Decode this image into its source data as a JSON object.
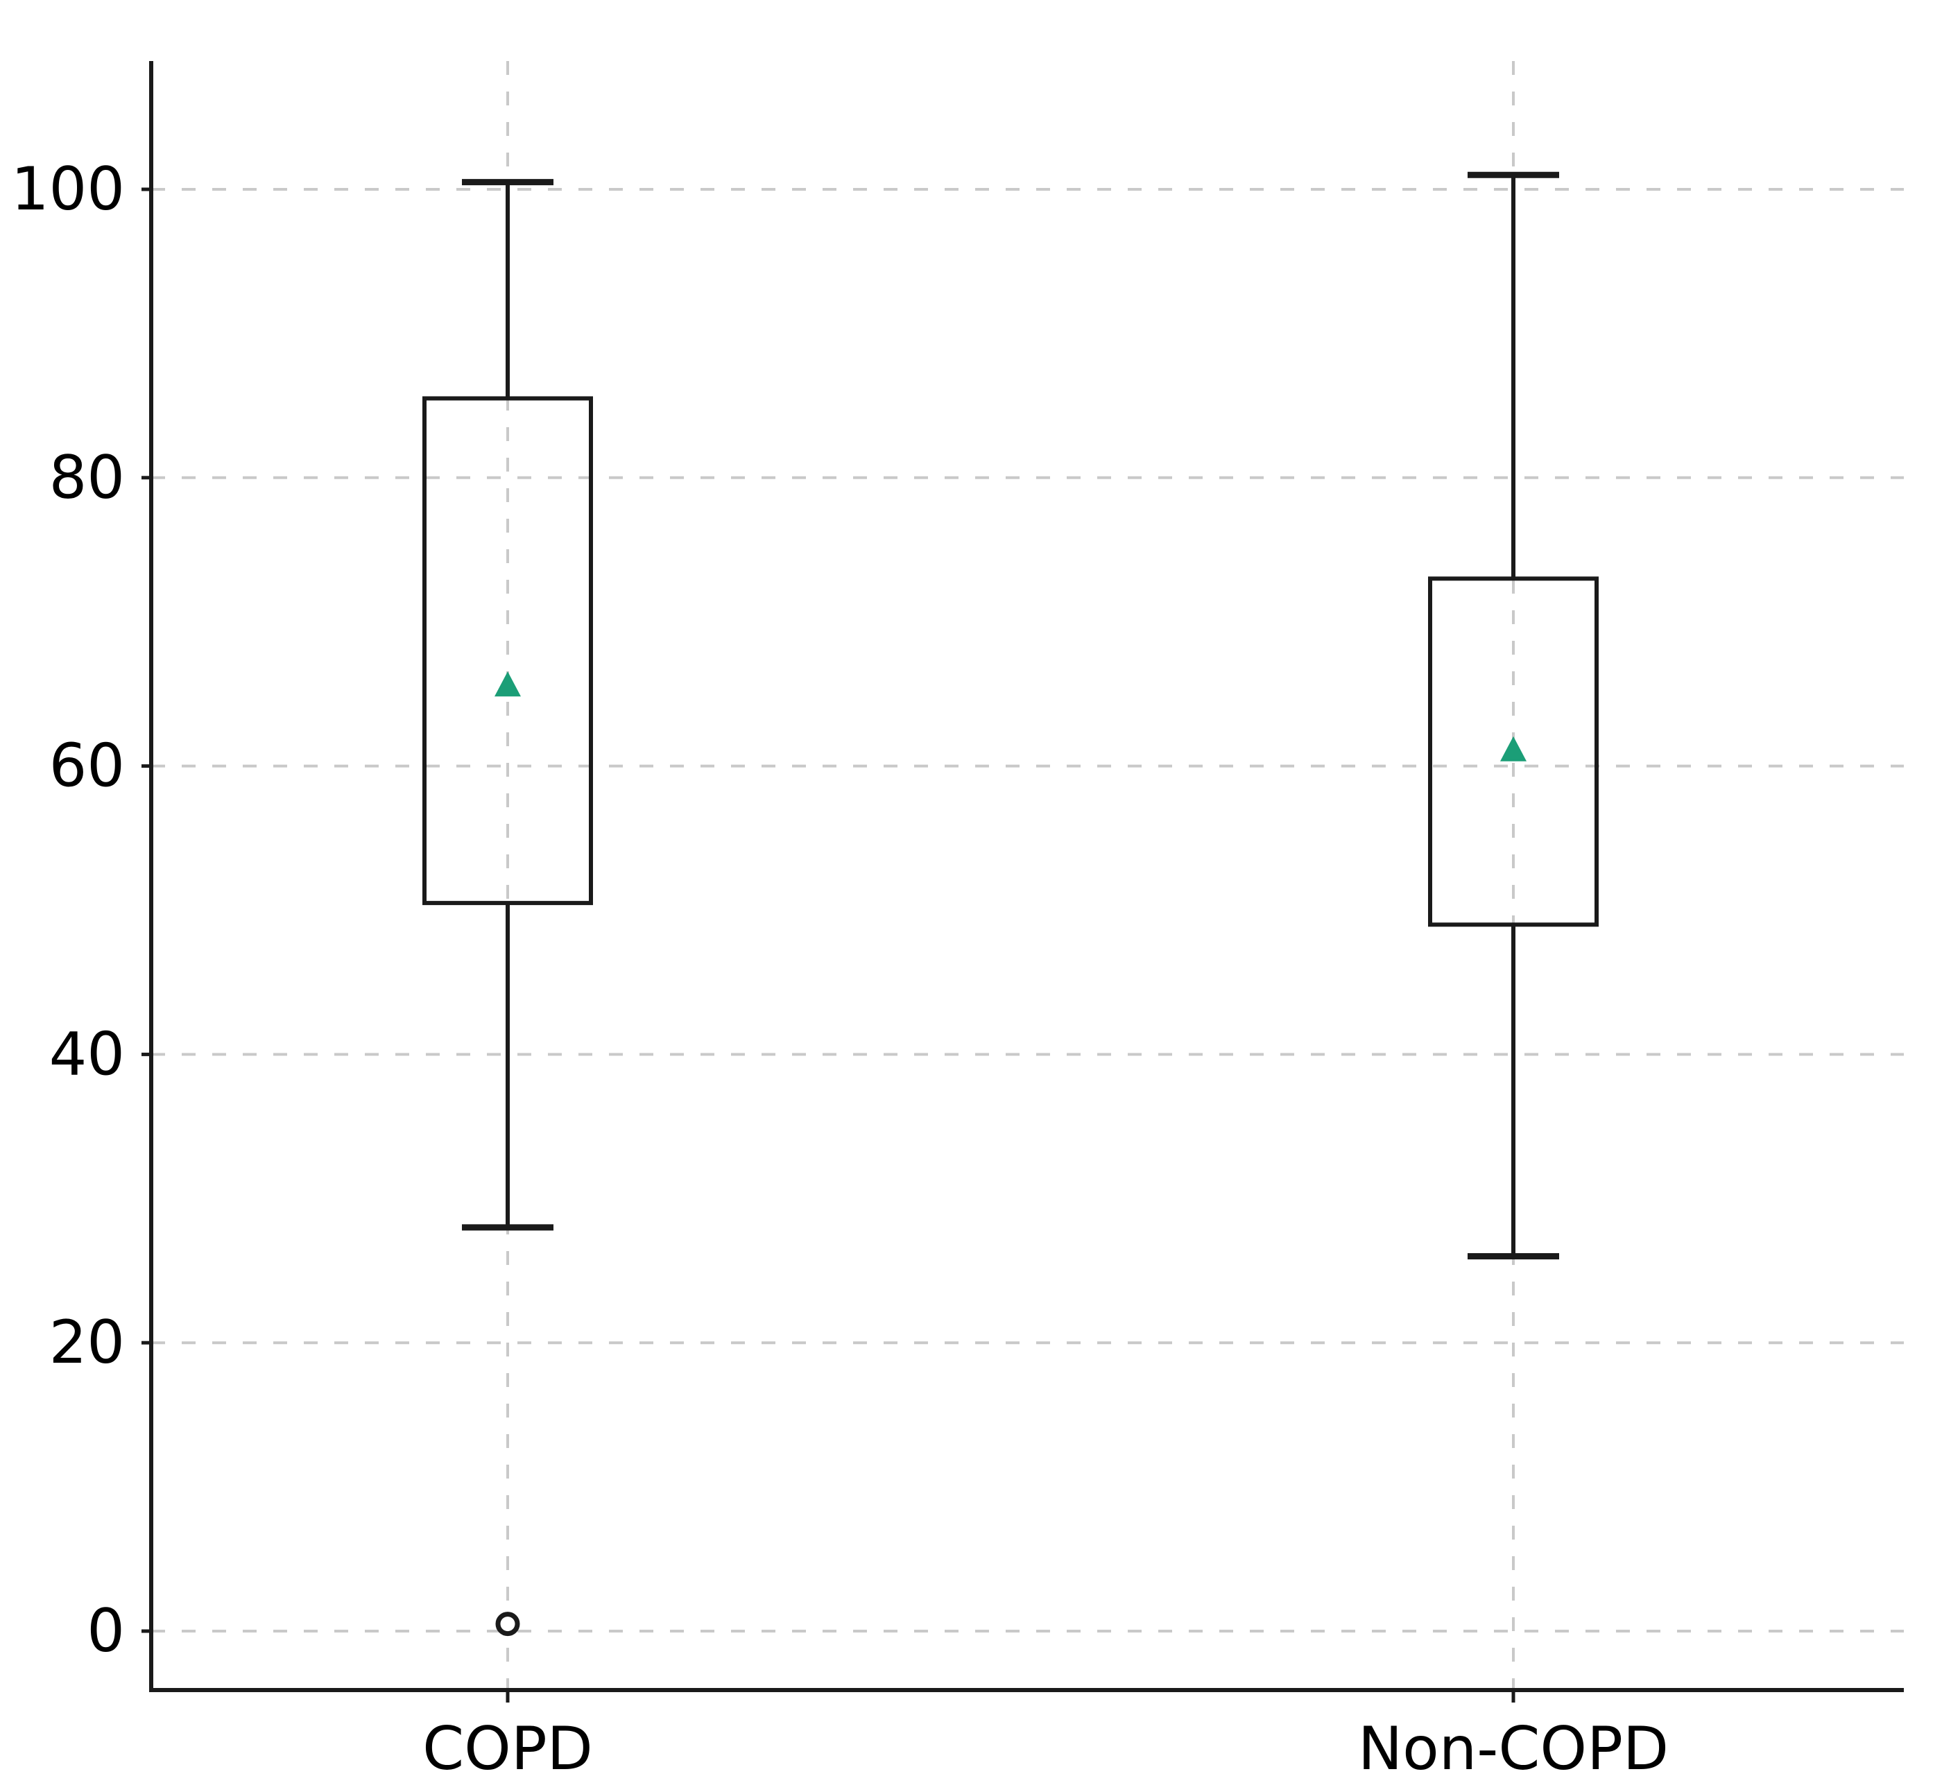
{
  "figure": {
    "background": "#ffffff"
  },
  "chart_data": {
    "type": "box",
    "title": "",
    "xlabel": "",
    "ylabel": "",
    "categories": [
      "COPD",
      "Non-COPD"
    ],
    "series": [
      {
        "name": "COPD",
        "whisker_low": 28,
        "q1": 50.5,
        "q3": 85.5,
        "whisker_high": 100.5,
        "mean": 65.5,
        "outliers": [
          0.5
        ]
      },
      {
        "name": "Non-COPD",
        "whisker_low": 26,
        "q1": 49,
        "q3": 73,
        "whisker_high": 101,
        "mean": 61,
        "outliers": []
      }
    ],
    "median_shown": false,
    "mean_marker": "triangle-up",
    "yticks": [
      0,
      20,
      40,
      60,
      80,
      100
    ],
    "ylim": [
      -4,
      109
    ],
    "grid": true,
    "grid_style": "dashed",
    "legend_position": "none",
    "colors": {
      "box_line": "#1a1a1a",
      "whisker_line": "#1a1a1a",
      "mean_marker": "#1b9e77",
      "outlier_edge": "#1a1a1a",
      "outlier_fill": "#ffffff",
      "grid_line": "#c9c9c9",
      "axis_line": "#1a1a1a",
      "tick_label": "#000000"
    }
  }
}
